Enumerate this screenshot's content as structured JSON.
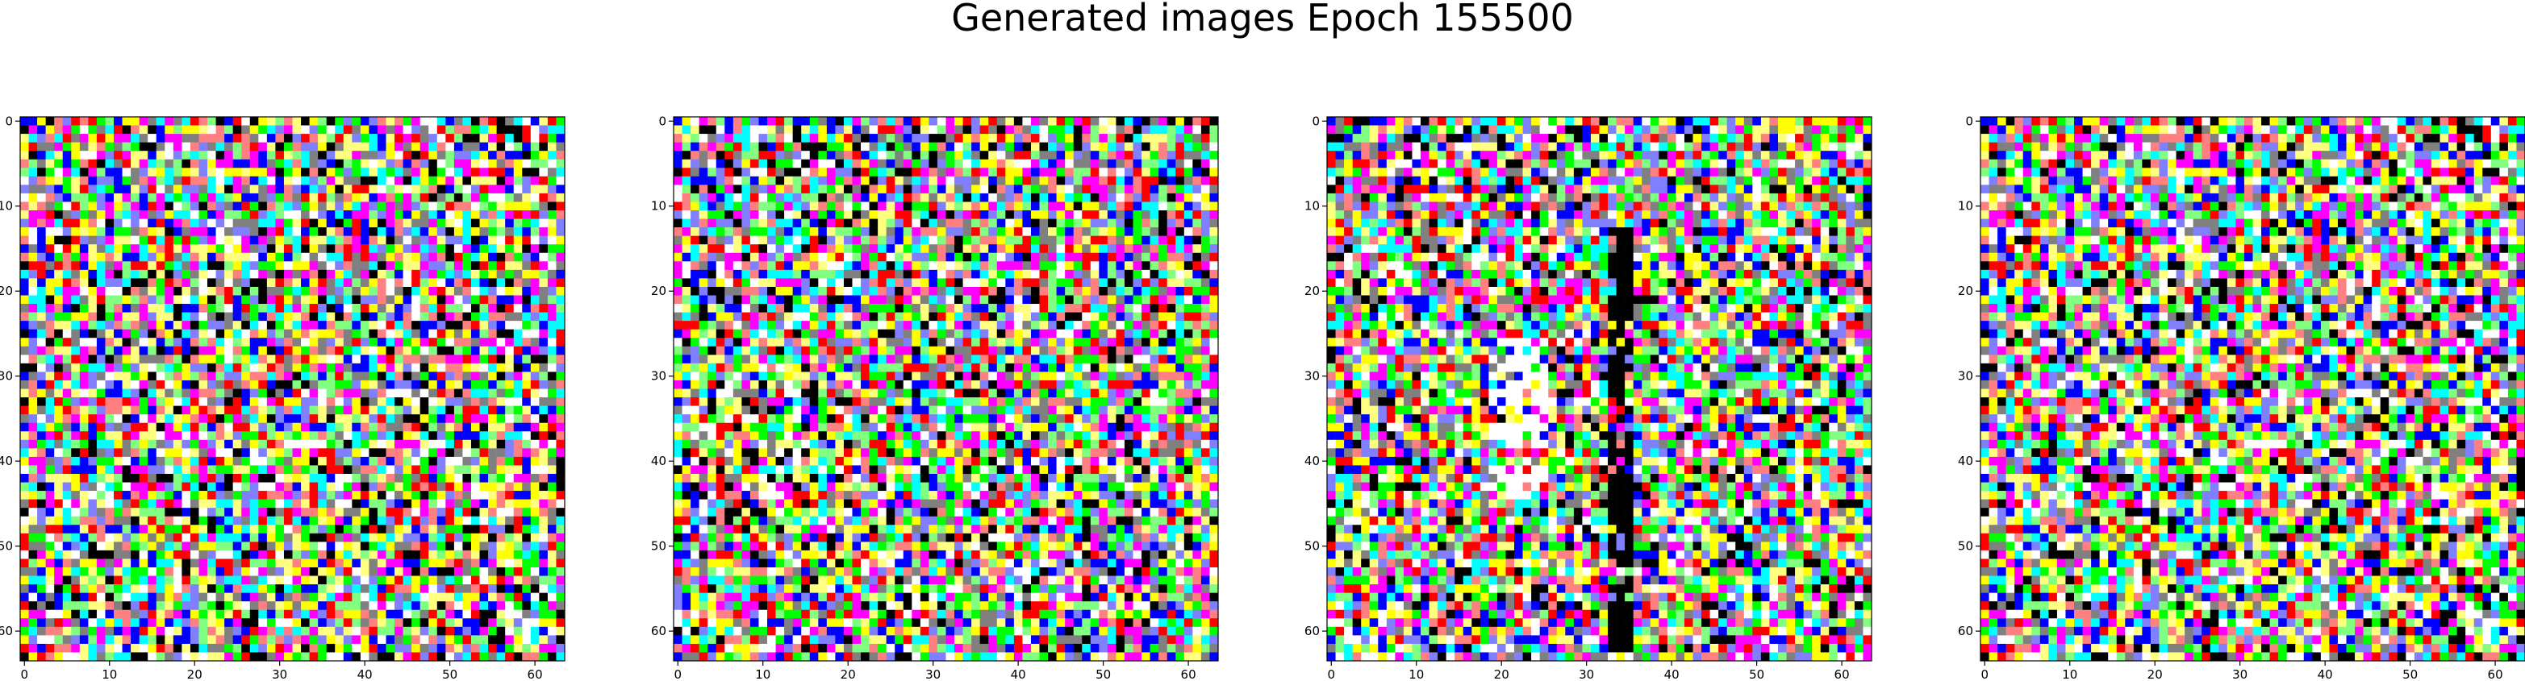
{
  "chart_data": {
    "type": "heatmap",
    "title": "Generated images Epoch 155500",
    "panels": [
      {
        "name": "",
        "grid_size": 64,
        "xlim": [
          0,
          63
        ],
        "ylim": [
          63,
          0
        ],
        "xticks": [
          0,
          10,
          20,
          30,
          40,
          50,
          60
        ],
        "yticks": [
          0,
          10,
          20,
          30,
          40,
          50,
          60
        ],
        "seed": 11,
        "white_column_bias": 0,
        "dark_column_bias": 0
      },
      {
        "name": "",
        "grid_size": 64,
        "xlim": [
          0,
          63
        ],
        "ylim": [
          63,
          0
        ],
        "xticks": [
          0,
          10,
          20,
          30,
          40,
          50,
          60
        ],
        "yticks": [
          0,
          10,
          20,
          30,
          40,
          50,
          60
        ],
        "seed": 23,
        "white_column_bias": 0,
        "dark_column_bias": 0
      },
      {
        "name": "",
        "grid_size": 64,
        "xlim": [
          0,
          63
        ],
        "ylim": [
          63,
          0
        ],
        "xticks": [
          0,
          10,
          20,
          30,
          40,
          50,
          60
        ],
        "yticks": [
          0,
          10,
          20,
          30,
          40,
          50,
          60
        ],
        "seed": 37,
        "white_column_bias": 22,
        "dark_column_bias": 34
      },
      {
        "name": "",
        "grid_size": 64,
        "xlim": [
          0,
          63
        ],
        "ylim": [
          63,
          0
        ],
        "xticks": [
          0,
          10,
          20,
          30,
          40,
          50,
          60
        ],
        "yticks": [
          0,
          10,
          20,
          30,
          40,
          50,
          60
        ],
        "seed": 11,
        "white_column_bias": 0,
        "dark_column_bias": 0
      }
    ],
    "palette": [
      "#000000",
      "#ff0000",
      "#00ff00",
      "#0000ff",
      "#ffff00",
      "#00ffff",
      "#ff00ff",
      "#ffffff",
      "#808080",
      "#ff8080",
      "#80ff80",
      "#8080ff",
      "#ffff80"
    ]
  }
}
